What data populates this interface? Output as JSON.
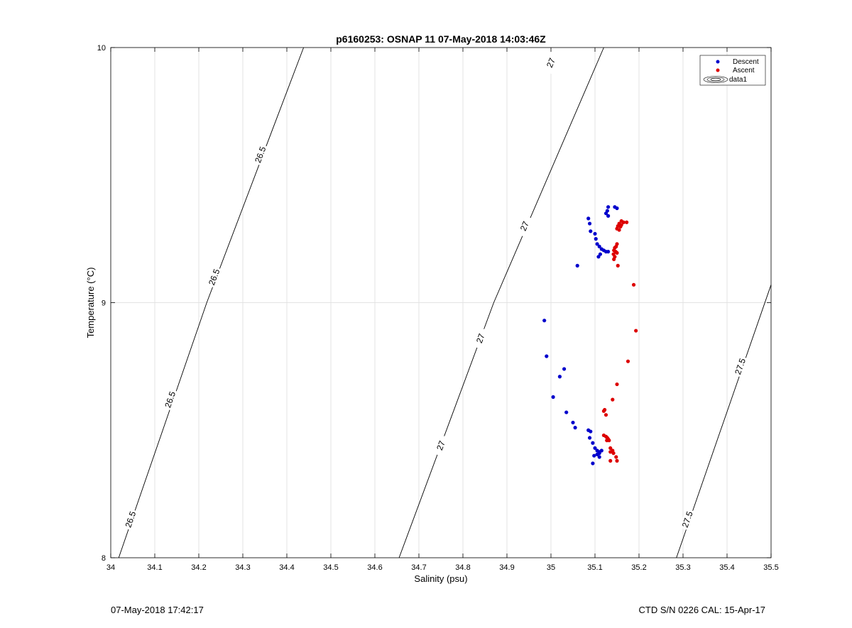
{
  "chart_data": {
    "type": "scatter",
    "title": "p6160253: OSNAP 11 07-May-2018 14:03:46Z",
    "xlabel": "Salinity (psu)",
    "ylabel": "Temperature (°C)",
    "xlim": [
      34,
      35.5
    ],
    "ylim": [
      8,
      10
    ],
    "x_ticks": [
      "34",
      "34.1",
      "34.2",
      "34.3",
      "34.4",
      "34.5",
      "34.6",
      "34.7",
      "34.8",
      "34.9",
      "35",
      "35.1",
      "35.2",
      "35.3",
      "35.4",
      "35.5"
    ],
    "y_ticks": [
      "8",
      "9",
      "10"
    ],
    "grid": true,
    "legend_position": "top-right",
    "series": [
      {
        "name": "Descent",
        "color": "#0000cc",
        "points": [
          [
            35.13,
            9.375
          ],
          [
            35.145,
            9.375
          ],
          [
            35.128,
            9.36
          ],
          [
            35.15,
            9.37
          ],
          [
            35.125,
            9.35
          ],
          [
            35.13,
            9.34
          ],
          [
            35.085,
            9.33
          ],
          [
            35.088,
            9.31
          ],
          [
            35.09,
            9.28
          ],
          [
            35.1,
            9.27
          ],
          [
            35.102,
            9.25
          ],
          [
            35.105,
            9.23
          ],
          [
            35.11,
            9.22
          ],
          [
            35.115,
            9.21
          ],
          [
            35.12,
            9.205
          ],
          [
            35.125,
            9.2
          ],
          [
            35.13,
            9.2
          ],
          [
            35.112,
            9.19
          ],
          [
            35.108,
            9.18
          ],
          [
            35.06,
            9.145
          ],
          [
            34.985,
            8.93
          ],
          [
            34.99,
            8.79
          ],
          [
            35.03,
            8.74
          ],
          [
            35.02,
            8.71
          ],
          [
            35.005,
            8.63
          ],
          [
            35.035,
            8.57
          ],
          [
            35.05,
            8.53
          ],
          [
            35.055,
            8.51
          ],
          [
            35.085,
            8.5
          ],
          [
            35.09,
            8.495
          ],
          [
            35.088,
            8.47
          ],
          [
            35.095,
            8.45
          ],
          [
            35.1,
            8.43
          ],
          [
            35.105,
            8.42
          ],
          [
            35.11,
            8.415
          ],
          [
            35.115,
            8.42
          ],
          [
            35.11,
            8.41
          ],
          [
            35.105,
            8.405
          ],
          [
            35.098,
            8.4
          ],
          [
            35.11,
            8.395
          ],
          [
            35.095,
            8.37
          ]
        ]
      },
      {
        "name": "Ascent",
        "color": "#dd0000",
        "points": [
          [
            35.16,
            9.32
          ],
          [
            35.165,
            9.315
          ],
          [
            35.172,
            9.315
          ],
          [
            35.155,
            9.31
          ],
          [
            35.16,
            9.305
          ],
          [
            35.152,
            9.3
          ],
          [
            35.158,
            9.298
          ],
          [
            35.15,
            9.29
          ],
          [
            35.155,
            9.285
          ],
          [
            35.15,
            9.23
          ],
          [
            35.148,
            9.22
          ],
          [
            35.145,
            9.215
          ],
          [
            35.143,
            9.205
          ],
          [
            35.147,
            9.2
          ],
          [
            35.15,
            9.195
          ],
          [
            35.142,
            9.19
          ],
          [
            35.145,
            9.18
          ],
          [
            35.143,
            9.17
          ],
          [
            35.152,
            9.145
          ],
          [
            35.188,
            9.07
          ],
          [
            35.193,
            8.89
          ],
          [
            35.175,
            8.77
          ],
          [
            35.15,
            8.68
          ],
          [
            35.14,
            8.62
          ],
          [
            35.122,
            8.58
          ],
          [
            35.12,
            8.575
          ],
          [
            35.125,
            8.56
          ],
          [
            35.12,
            8.48
          ],
          [
            35.125,
            8.475
          ],
          [
            35.128,
            8.47
          ],
          [
            35.13,
            8.465
          ],
          [
            35.127,
            8.46
          ],
          [
            35.132,
            8.46
          ],
          [
            35.135,
            8.43
          ],
          [
            35.14,
            8.42
          ],
          [
            35.135,
            8.415
          ],
          [
            35.142,
            8.41
          ],
          [
            35.148,
            8.395
          ],
          [
            35.135,
            8.38
          ],
          [
            35.15,
            8.38
          ]
        ]
      },
      {
        "name": "data1",
        "color": "#000000"
      }
    ],
    "contours": [
      {
        "level": "26.5",
        "points": [
          [
            34.018,
            8.0
          ],
          [
            34.218,
            9.0
          ],
          [
            34.438,
            10.0
          ]
        ],
        "labels": [
          [
            34.045,
            8.15
          ],
          [
            34.135,
            8.62
          ],
          [
            34.235,
            9.1
          ],
          [
            34.34,
            9.58
          ]
        ]
      },
      {
        "level": "27",
        "points": [
          [
            34.655,
            8.0
          ],
          [
            34.87,
            9.0
          ],
          [
            35.12,
            10.0
          ]
        ],
        "labels": [
          [
            34.75,
            8.44
          ],
          [
            34.84,
            8.86
          ],
          [
            34.94,
            9.3
          ],
          [
            35.0,
            9.94
          ]
        ]
      },
      {
        "level": "27.5",
        "points": [
          [
            35.285,
            8.0
          ],
          [
            35.5,
            9.07
          ]
        ],
        "labels": [
          [
            35.31,
            8.15
          ],
          [
            35.43,
            8.75
          ]
        ]
      }
    ]
  },
  "footer": {
    "timestamp": "07-May-2018 17:42:17",
    "instrument": "CTD S/N 0226  CAL: 15-Apr-17"
  }
}
